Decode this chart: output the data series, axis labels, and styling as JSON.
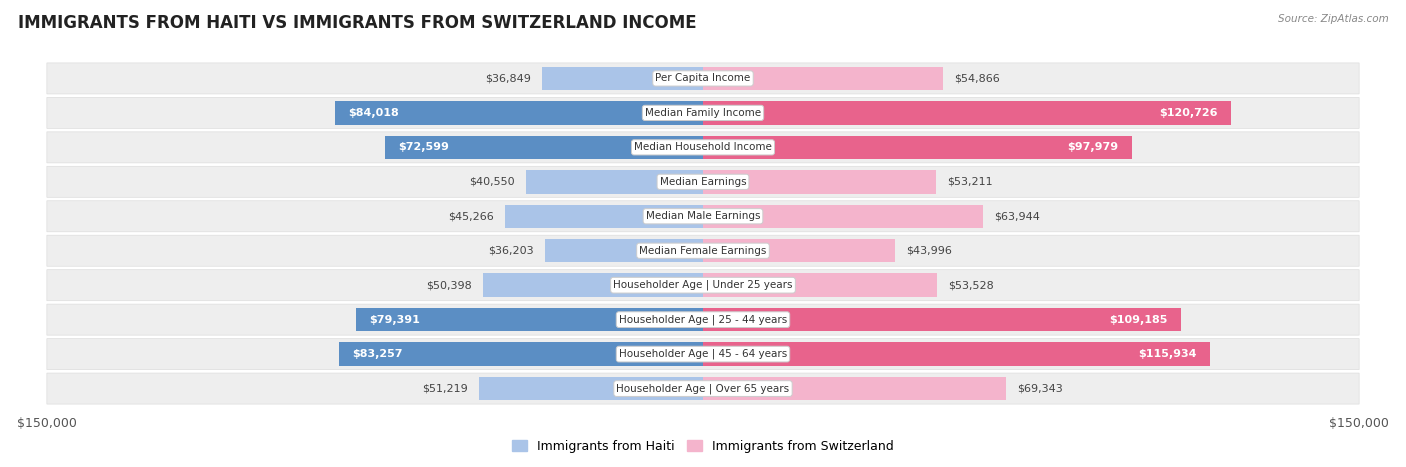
{
  "title": "IMMIGRANTS FROM HAITI VS IMMIGRANTS FROM SWITZERLAND INCOME",
  "source": "Source: ZipAtlas.com",
  "categories": [
    "Per Capita Income",
    "Median Family Income",
    "Median Household Income",
    "Median Earnings",
    "Median Male Earnings",
    "Median Female Earnings",
    "Householder Age | Under 25 years",
    "Householder Age | 25 - 44 years",
    "Householder Age | 45 - 64 years",
    "Householder Age | Over 65 years"
  ],
  "haiti_values": [
    36849,
    84018,
    72599,
    40550,
    45266,
    36203,
    50398,
    79391,
    83257,
    51219
  ],
  "switzerland_values": [
    54866,
    120726,
    97979,
    53211,
    63944,
    43996,
    53528,
    109185,
    115934,
    69343
  ],
  "haiti_color_light": "#aac4e8",
  "haiti_color_dark": "#5b8ec4",
  "switzerland_color_light": "#f4b4cc",
  "switzerland_color_dark": "#e8638c",
  "haiti_threshold": 65000,
  "switzerland_threshold": 80000,
  "max_value": 150000,
  "legend_haiti": "Immigrants from Haiti",
  "legend_switzerland": "Immigrants from Switzerland",
  "background_color": "#ffffff",
  "row_bg_color": "#eeeeee",
  "row_border_color": "#dddddd",
  "title_fontsize": 12,
  "bar_label_fontsize": 8,
  "cat_label_fontsize": 7.5,
  "axis_label_fontsize": 9
}
